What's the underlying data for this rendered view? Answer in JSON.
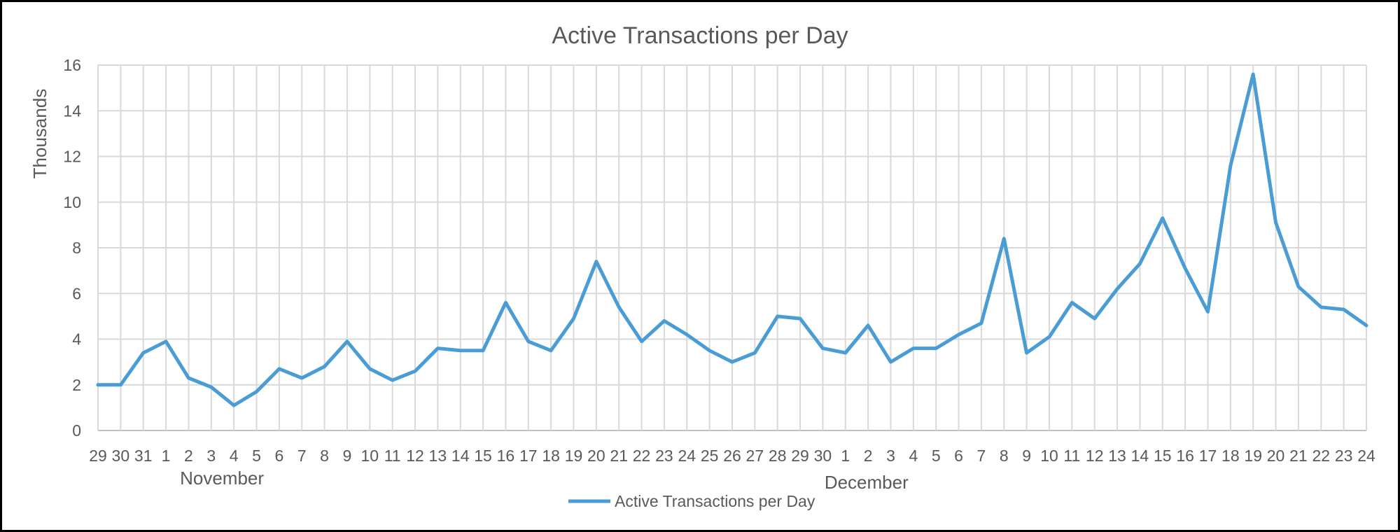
{
  "chart_data": {
    "type": "line",
    "title": "Active Transactions per Day",
    "ylabel": "Thousands",
    "xlabel": "",
    "ylim": [
      0,
      16
    ],
    "y_ticks": [
      0,
      2,
      4,
      6,
      8,
      10,
      12,
      14,
      16
    ],
    "grid": true,
    "legend_position": "bottom",
    "categories": [
      "29",
      "30",
      "31",
      "1",
      "2",
      "3",
      "4",
      "5",
      "6",
      "7",
      "8",
      "9",
      "10",
      "11",
      "12",
      "13",
      "14",
      "15",
      "16",
      "17",
      "18",
      "19",
      "20",
      "21",
      "22",
      "23",
      "24",
      "25",
      "26",
      "27",
      "28",
      "29",
      "30",
      "1",
      "2",
      "3",
      "4",
      "5",
      "6",
      "7",
      "8",
      "9",
      "10",
      "11",
      "12",
      "13",
      "14",
      "15",
      "16",
      "17",
      "18",
      "19",
      "20",
      "21",
      "22",
      "23",
      "24"
    ],
    "month_groups": [
      {
        "label": "November",
        "start": 3,
        "end": 32
      },
      {
        "label": "December",
        "start": 33,
        "end": 56
      }
    ],
    "series": [
      {
        "name": "Active Transactions per Day",
        "color": "#4a9cd4",
        "values": [
          2.0,
          2.0,
          3.4,
          3.9,
          2.3,
          1.9,
          1.1,
          1.7,
          2.7,
          2.3,
          2.8,
          3.9,
          2.7,
          2.2,
          2.6,
          3.6,
          3.5,
          3.5,
          5.6,
          3.9,
          3.5,
          4.9,
          7.4,
          5.4,
          3.9,
          4.8,
          4.2,
          3.5,
          3.0,
          3.4,
          5.0,
          4.9,
          3.6,
          3.4,
          4.6,
          3.0,
          3.6,
          3.6,
          4.2,
          4.7,
          8.4,
          3.4,
          4.1,
          5.6,
          4.9,
          6.2,
          7.3,
          9.3,
          7.1,
          5.2,
          11.6,
          15.6,
          9.1,
          6.3,
          5.4,
          5.3,
          4.6
        ]
      }
    ]
  }
}
